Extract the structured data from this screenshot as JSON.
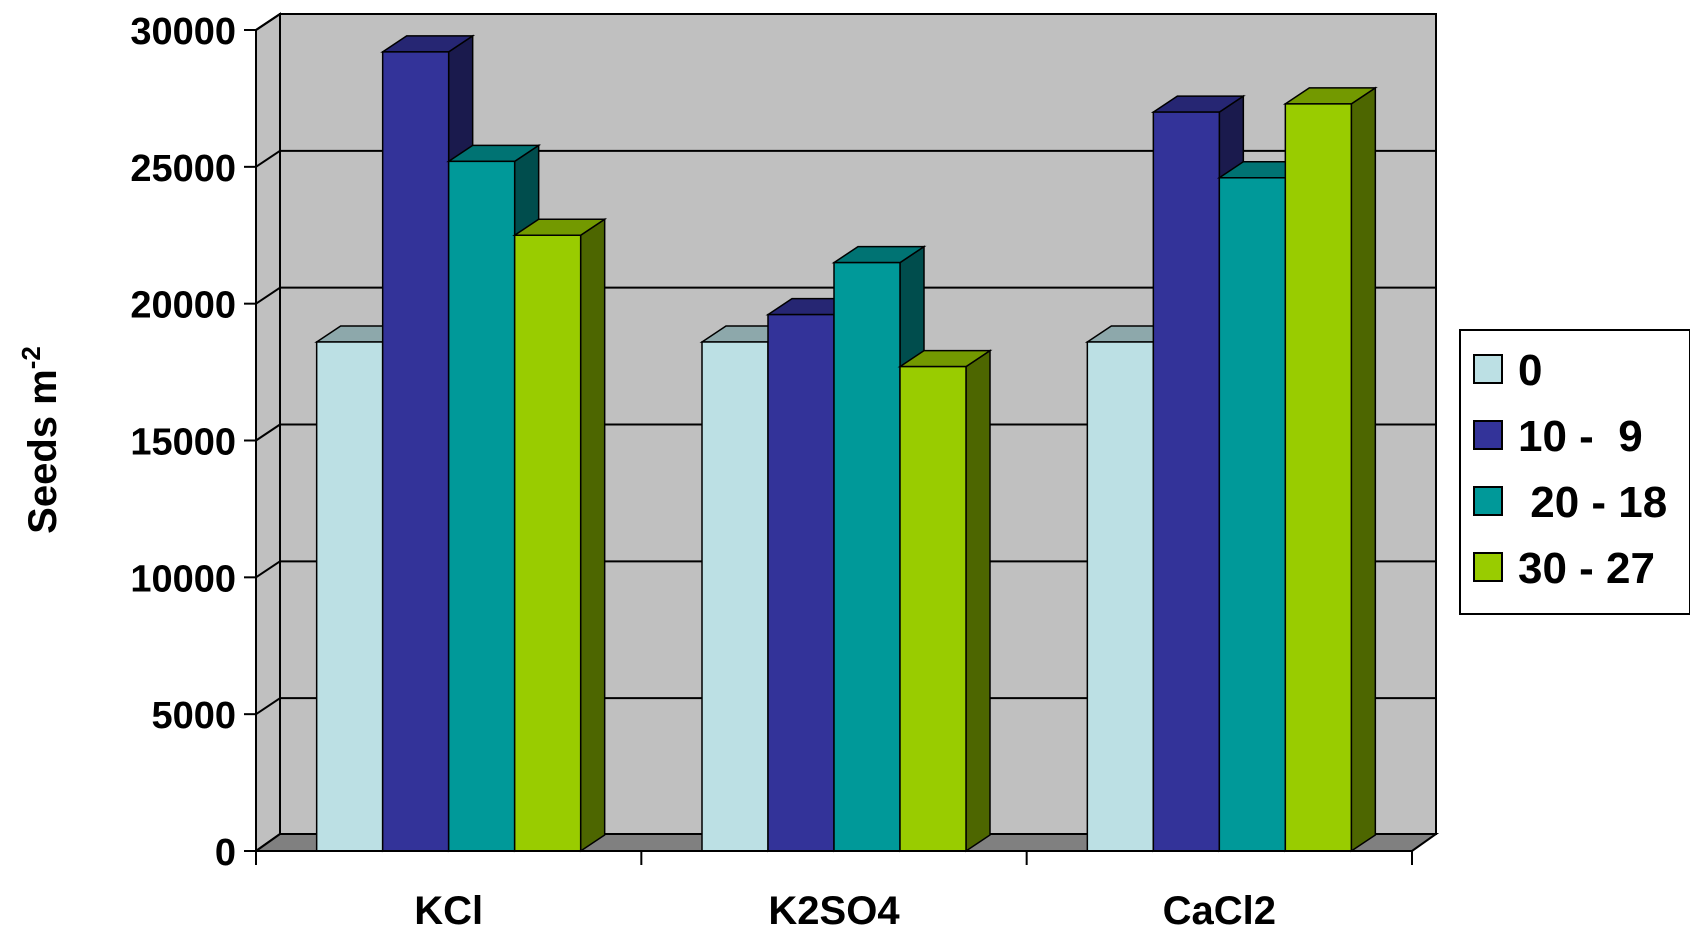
{
  "chart_data": {
    "type": "bar",
    "title": "",
    "xlabel": "",
    "ylabel": "Seeds m",
    "ylabel_superscript": "-2",
    "ylim": [
      0,
      30000
    ],
    "yticks": [
      "0",
      "5000",
      "10000",
      "15000",
      "20000",
      "25000",
      "30000"
    ],
    "categories": [
      "KCl",
      "K2SO4",
      "CaCl2"
    ],
    "grid": true,
    "legend_position": "right",
    "series": [
      {
        "name": "0",
        "color": "#BCE0E4",
        "values": [
          18600,
          18600,
          18600
        ]
      },
      {
        "name": "10 -  9",
        "color": "#333399",
        "values": [
          29200,
          19600,
          27000
        ]
      },
      {
        "name": " 20 - 18",
        "color": "#009999",
        "values": [
          25200,
          21500,
          24600
        ]
      },
      {
        "name": "30 - 27",
        "color": "#99CC00",
        "values": [
          22500,
          17700,
          27300
        ]
      }
    ]
  }
}
